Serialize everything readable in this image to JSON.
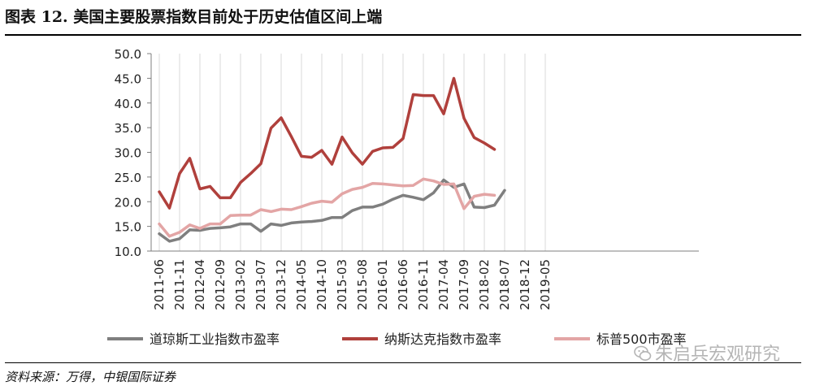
{
  "figure": {
    "title": "图表 12. 美国主要股票指数目前处于历史估值区间上端",
    "source": "资料来源：万得，中银国际证券",
    "watermark": "朱启兵宏观研究"
  },
  "chart_data": {
    "type": "line",
    "title": "",
    "xlabel": "",
    "ylabel": "",
    "ylim": [
      10.0,
      50.0
    ],
    "yticks": [
      "10.0",
      "15.0",
      "20.0",
      "25.0",
      "30.0",
      "35.0",
      "40.0",
      "45.0",
      "50.0"
    ],
    "xtick_labels": [
      "2011-06",
      "2011-11",
      "2012-04",
      "2012-09",
      "2013-02",
      "2013-07",
      "2013-12",
      "2014-05",
      "2014-10",
      "2015-03",
      "2015-08",
      "2016-01",
      "2016-06",
      "2016-11",
      "2017-04",
      "2017-09",
      "2018-02",
      "2018-07",
      "2018-12",
      "2019-05"
    ],
    "grid": "vertical",
    "legend_position": "bottom",
    "x": [
      "2011-06",
      "2011-09",
      "2011-11",
      "2012-02",
      "2012-04",
      "2012-07",
      "2012-09",
      "2012-12",
      "2013-02",
      "2013-05",
      "2013-07",
      "2013-10",
      "2013-12",
      "2014-03",
      "2014-05",
      "2014-08",
      "2014-10",
      "2015-01",
      "2015-03",
      "2015-06",
      "2015-08",
      "2015-11",
      "2016-01",
      "2016-04",
      "2016-06",
      "2016-09",
      "2016-11",
      "2017-02",
      "2017-04",
      "2017-07",
      "2017-09",
      "2017-12",
      "2018-02",
      "2018-05",
      "2018-07",
      "2018-10",
      "2018-12",
      "2019-03",
      "2019-05",
      "2019-08"
    ],
    "series": [
      {
        "name": "道琼斯工业指数市盈率",
        "color": "#7f7f7f",
        "values": [
          13.5,
          12.0,
          12.5,
          14.3,
          14.2,
          14.6,
          14.7,
          14.9,
          15.5,
          15.5,
          14.0,
          15.5,
          15.2,
          15.7,
          15.9,
          16.0,
          16.2,
          16.8,
          16.8,
          18.2,
          18.9,
          18.9,
          19.5,
          20.5,
          21.3,
          20.9,
          20.4,
          21.8,
          24.4,
          22.9,
          23.6,
          18.9,
          18.8,
          19.3,
          22.3,
          null,
          null,
          null,
          null,
          null
        ]
      },
      {
        "name": "纳斯达克指数市盈率",
        "color": "#b0403c",
        "values": [
          22.0,
          18.7,
          25.7,
          28.8,
          22.6,
          23.1,
          20.8,
          20.8,
          23.9,
          25.7,
          27.7,
          34.9,
          37.0,
          33.2,
          29.2,
          29.0,
          30.4,
          27.6,
          33.1,
          29.9,
          27.6,
          30.2,
          30.9,
          31.0,
          32.8,
          41.7,
          41.5,
          41.5,
          37.8,
          45.0,
          36.9,
          33.0,
          31.9,
          30.6,
          null,
          null,
          null,
          null,
          null,
          null
        ]
      },
      {
        "name": "标普500市盈率",
        "color": "#e3a5a5",
        "values": [
          15.5,
          13.0,
          13.8,
          15.3,
          14.6,
          15.5,
          15.5,
          17.2,
          17.3,
          17.3,
          18.4,
          18.0,
          18.5,
          18.4,
          19.0,
          19.7,
          20.1,
          19.9,
          21.6,
          22.5,
          22.9,
          23.7,
          23.6,
          23.4,
          23.2,
          23.3,
          24.6,
          24.2,
          23.5,
          23.6,
          18.6,
          21.1,
          21.5,
          21.3,
          null,
          null,
          null,
          null,
          null,
          null
        ]
      }
    ]
  }
}
